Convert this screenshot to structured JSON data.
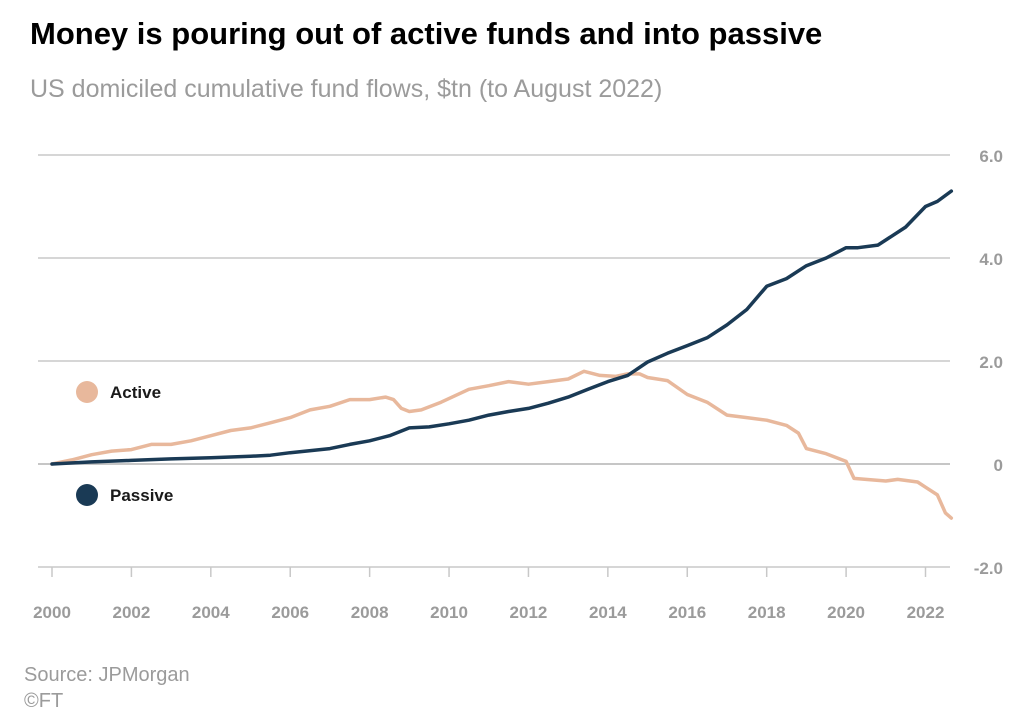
{
  "header": {
    "title": "Money is pouring out of active funds and into passive",
    "subtitle": "US domiciled cumulative fund flows, $tn (to August 2022)"
  },
  "footer": {
    "source": "Source: JPMorgan",
    "copyright": "©FT"
  },
  "colors": {
    "active": "#e8b89c",
    "passive": "#1a3a55",
    "grid": "#c8c8c8",
    "axis_text": "#9b9b9b"
  },
  "chart_data": {
    "type": "line",
    "title": "Money is pouring out of active funds and into passive",
    "subtitle": "US domiciled cumulative fund flows, $tn (to August 2022)",
    "xlim": [
      2000,
      2023
    ],
    "ylim": [
      -2,
      6
    ],
    "x_ticks": [
      2000,
      2002,
      2004,
      2006,
      2008,
      2010,
      2012,
      2014,
      2016,
      2018,
      2020,
      2022
    ],
    "x_tick_labels": [
      "2000",
      "2002",
      "2004",
      "2006",
      "2008",
      "2010",
      "2012",
      "2014",
      "2016",
      "2018",
      "2020",
      "2022"
    ],
    "y_ticks": [
      -2,
      0,
      2,
      4,
      6
    ],
    "y_tick_labels": [
      "-2.0",
      "0",
      "2.0",
      "4.0",
      "6.0"
    ],
    "y_axis_position": "right",
    "grid": true,
    "legend": "inline-left",
    "series": [
      {
        "name": "Active",
        "color": "#e8b89c",
        "points": [
          [
            2000.0,
            0.0
          ],
          [
            2000.5,
            0.08
          ],
          [
            2001.0,
            0.18
          ],
          [
            2001.5,
            0.25
          ],
          [
            2002.0,
            0.28
          ],
          [
            2002.5,
            0.38
          ],
          [
            2003.0,
            0.38
          ],
          [
            2003.5,
            0.45
          ],
          [
            2004.0,
            0.55
          ],
          [
            2004.5,
            0.65
          ],
          [
            2005.0,
            0.7
          ],
          [
            2005.5,
            0.8
          ],
          [
            2006.0,
            0.9
          ],
          [
            2006.5,
            1.05
          ],
          [
            2007.0,
            1.12
          ],
          [
            2007.5,
            1.25
          ],
          [
            2008.0,
            1.25
          ],
          [
            2008.4,
            1.3
          ],
          [
            2008.6,
            1.25
          ],
          [
            2008.8,
            1.08
          ],
          [
            2009.0,
            1.02
          ],
          [
            2009.3,
            1.05
          ],
          [
            2009.8,
            1.2
          ],
          [
            2010.5,
            1.45
          ],
          [
            2011.0,
            1.52
          ],
          [
            2011.5,
            1.6
          ],
          [
            2012.0,
            1.55
          ],
          [
            2012.5,
            1.6
          ],
          [
            2013.0,
            1.65
          ],
          [
            2013.4,
            1.8
          ],
          [
            2013.8,
            1.72
          ],
          [
            2014.2,
            1.7
          ],
          [
            2014.5,
            1.75
          ],
          [
            2014.8,
            1.75
          ],
          [
            2015.0,
            1.68
          ],
          [
            2015.5,
            1.62
          ],
          [
            2016.0,
            1.35
          ],
          [
            2016.5,
            1.2
          ],
          [
            2017.0,
            0.95
          ],
          [
            2017.5,
            0.9
          ],
          [
            2018.0,
            0.85
          ],
          [
            2018.5,
            0.75
          ],
          [
            2018.8,
            0.6
          ],
          [
            2019.0,
            0.3
          ],
          [
            2019.5,
            0.2
          ],
          [
            2020.0,
            0.05
          ],
          [
            2020.2,
            -0.28
          ],
          [
            2020.5,
            -0.3
          ],
          [
            2021.0,
            -0.33
          ],
          [
            2021.3,
            -0.3
          ],
          [
            2021.8,
            -0.35
          ],
          [
            2022.0,
            -0.45
          ],
          [
            2022.3,
            -0.6
          ],
          [
            2022.5,
            -0.95
          ],
          [
            2022.65,
            -1.05
          ]
        ]
      },
      {
        "name": "Passive",
        "color": "#1a3a55",
        "points": [
          [
            2000.0,
            0.0
          ],
          [
            2001.0,
            0.04
          ],
          [
            2002.0,
            0.07
          ],
          [
            2003.0,
            0.1
          ],
          [
            2004.0,
            0.12
          ],
          [
            2005.0,
            0.15
          ],
          [
            2005.5,
            0.17
          ],
          [
            2006.0,
            0.22
          ],
          [
            2007.0,
            0.3
          ],
          [
            2007.5,
            0.38
          ],
          [
            2008.0,
            0.45
          ],
          [
            2008.5,
            0.55
          ],
          [
            2009.0,
            0.7
          ],
          [
            2009.5,
            0.72
          ],
          [
            2010.0,
            0.78
          ],
          [
            2010.5,
            0.85
          ],
          [
            2011.0,
            0.95
          ],
          [
            2011.5,
            1.02
          ],
          [
            2012.0,
            1.08
          ],
          [
            2012.5,
            1.18
          ],
          [
            2013.0,
            1.3
          ],
          [
            2013.5,
            1.45
          ],
          [
            2014.0,
            1.6
          ],
          [
            2014.5,
            1.72
          ],
          [
            2015.0,
            1.98
          ],
          [
            2015.5,
            2.15
          ],
          [
            2016.0,
            2.3
          ],
          [
            2016.5,
            2.45
          ],
          [
            2017.0,
            2.7
          ],
          [
            2017.5,
            3.0
          ],
          [
            2018.0,
            3.45
          ],
          [
            2018.5,
            3.6
          ],
          [
            2019.0,
            3.85
          ],
          [
            2019.5,
            4.0
          ],
          [
            2020.0,
            4.2
          ],
          [
            2020.3,
            4.2
          ],
          [
            2020.8,
            4.25
          ],
          [
            2021.0,
            4.35
          ],
          [
            2021.5,
            4.6
          ],
          [
            2022.0,
            5.0
          ],
          [
            2022.3,
            5.1
          ],
          [
            2022.65,
            5.3
          ]
        ]
      }
    ]
  }
}
